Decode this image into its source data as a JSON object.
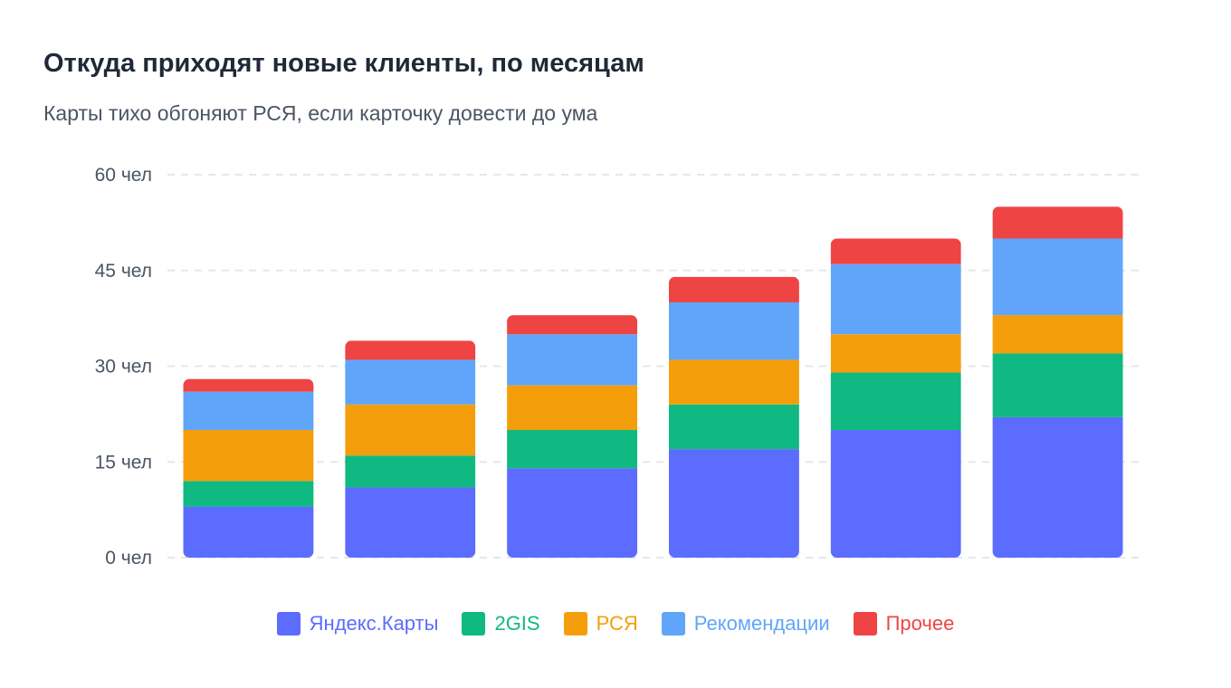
{
  "title": "Откуда приходят новые клиенты, по месяцам",
  "subtitle": "Карты тихо обгоняют РСЯ, если карточку довести до ума",
  "chart_data": {
    "type": "bar",
    "stacked": true,
    "categories": [
      "",
      "",
      "",
      "",
      "",
      ""
    ],
    "series": [
      {
        "name": "Яндекс.Карты",
        "color": "#5b6cfe",
        "values": [
          8,
          11,
          14,
          17,
          20,
          22
        ]
      },
      {
        "name": "2GIS",
        "color": "#10b981",
        "values": [
          4,
          5,
          6,
          7,
          9,
          10
        ]
      },
      {
        "name": "РСЯ",
        "color": "#f59e0b",
        "values": [
          8,
          8,
          7,
          7,
          6,
          6
        ]
      },
      {
        "name": "Рекомендации",
        "color": "#60a5fa",
        "values": [
          6,
          7,
          8,
          9,
          11,
          12
        ]
      },
      {
        "name": "Прочее",
        "color": "#ef4444",
        "values": [
          2,
          3,
          3,
          4,
          4,
          5
        ]
      }
    ],
    "yticks": [
      "0 чел",
      "15 чел",
      "30 чел",
      "45 чел",
      "60 чел"
    ],
    "ytick_values": [
      0,
      15,
      30,
      45,
      60
    ],
    "ylim": [
      0,
      60
    ],
    "grid": true,
    "legend_position": "bottom"
  }
}
